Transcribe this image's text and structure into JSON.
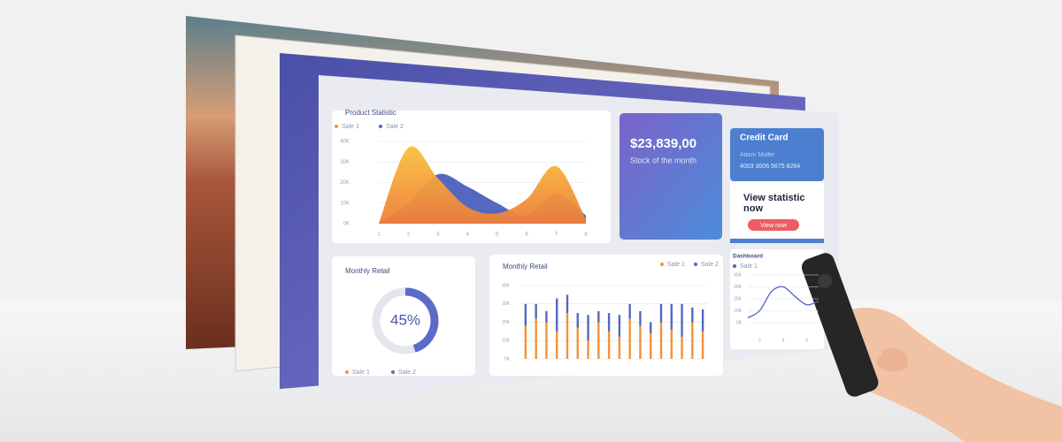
{
  "cards": {
    "stock": {
      "amount": "$23,839,00",
      "caption": "Stock of the month"
    },
    "credit_card": {
      "title": "Credit Card",
      "holder": "Adam Muller",
      "number": "4003 3006 5675 8264"
    },
    "promo": {
      "text": "View statistic now",
      "button": "View now"
    }
  },
  "chart_data": [
    {
      "type": "area",
      "title": "Product Statistic",
      "categories": [
        "1",
        "2",
        "3",
        "4",
        "5",
        "6",
        "7",
        "8"
      ],
      "series": [
        {
          "name": "Sale 1",
          "color": "#f39237",
          "values": [
            0,
            37000,
            22000,
            8000,
            5000,
            12000,
            28000,
            2000
          ]
        },
        {
          "name": "Sale 2",
          "color": "#5468c0",
          "values": [
            0,
            10000,
            24000,
            18000,
            10000,
            4000,
            15000,
            4000
          ]
        }
      ],
      "ylim": [
        0,
        40000
      ],
      "yticks": [
        {
          "value": 0,
          "label": "0K"
        },
        {
          "value": 10000,
          "label": "10K"
        },
        {
          "value": 20000,
          "label": "20K"
        },
        {
          "value": 30000,
          "label": "30K"
        },
        {
          "value": 40000,
          "label": "40K"
        }
      ],
      "grid": true
    },
    {
      "type": "donut",
      "title": "Monthly Retail",
      "values": [
        45
      ],
      "value_labels": [
        "45%"
      ],
      "color": "#5b6bc8",
      "legend": [
        {
          "name": "Sale 1",
          "color": "#f39237"
        },
        {
          "name": "Sale 2",
          "color": "#5b6bc8"
        }
      ]
    },
    {
      "type": "stacked_bar",
      "title": "Monthly Retail",
      "categories": [
        null,
        null,
        null,
        null,
        null,
        null,
        null,
        null,
        null,
        null,
        null,
        null,
        null,
        null,
        null,
        null,
        null,
        null
      ],
      "series": [
        {
          "name": "Sale 1",
          "color": "#f39237",
          "values": [
            18000,
            22000,
            20000,
            15000,
            25000,
            17000,
            10000,
            20000,
            15000,
            12000,
            22000,
            18000,
            14000,
            20000,
            16000,
            12000,
            20000,
            15000
          ]
        },
        {
          "name": "Sale 2",
          "color": "#5468c0",
          "values": [
            12000,
            8000,
            6000,
            18000,
            10000,
            8000,
            14000,
            6000,
            10000,
            12000,
            8000,
            8000,
            6000,
            10000,
            14000,
            18000,
            8000,
            12000
          ]
        }
      ],
      "ylim": [
        0,
        40000
      ],
      "yticks": [
        {
          "value": 0,
          "label": "0K"
        },
        {
          "value": 10000,
          "label": "10K"
        },
        {
          "value": 20000,
          "label": "20K"
        },
        {
          "value": 30000,
          "label": "30K"
        },
        {
          "value": 40000,
          "label": "40K"
        }
      ],
      "grid": true,
      "legend": "top-right"
    },
    {
      "type": "line",
      "title": "Dashboard",
      "x": [
        1,
        2,
        3,
        4,
        5,
        6,
        7
      ],
      "series": [
        {
          "name": "Sale 1",
          "color": "#4a63c9",
          "values": [
            4000,
            10000,
            26000,
            30000,
            22000,
            15000,
            18000
          ]
        }
      ],
      "xlim": [
        1,
        7
      ],
      "xticks": [
        2,
        4,
        6
      ],
      "ylim": [
        0,
        40000
      ],
      "yticks": [
        {
          "value": 0,
          "label": "0K"
        },
        {
          "value": 10000,
          "label": "10K"
        },
        {
          "value": 20000,
          "label": "20K"
        },
        {
          "value": 30000,
          "label": "30K"
        },
        {
          "value": 40000,
          "label": "40K"
        }
      ],
      "grid": true
    }
  ]
}
